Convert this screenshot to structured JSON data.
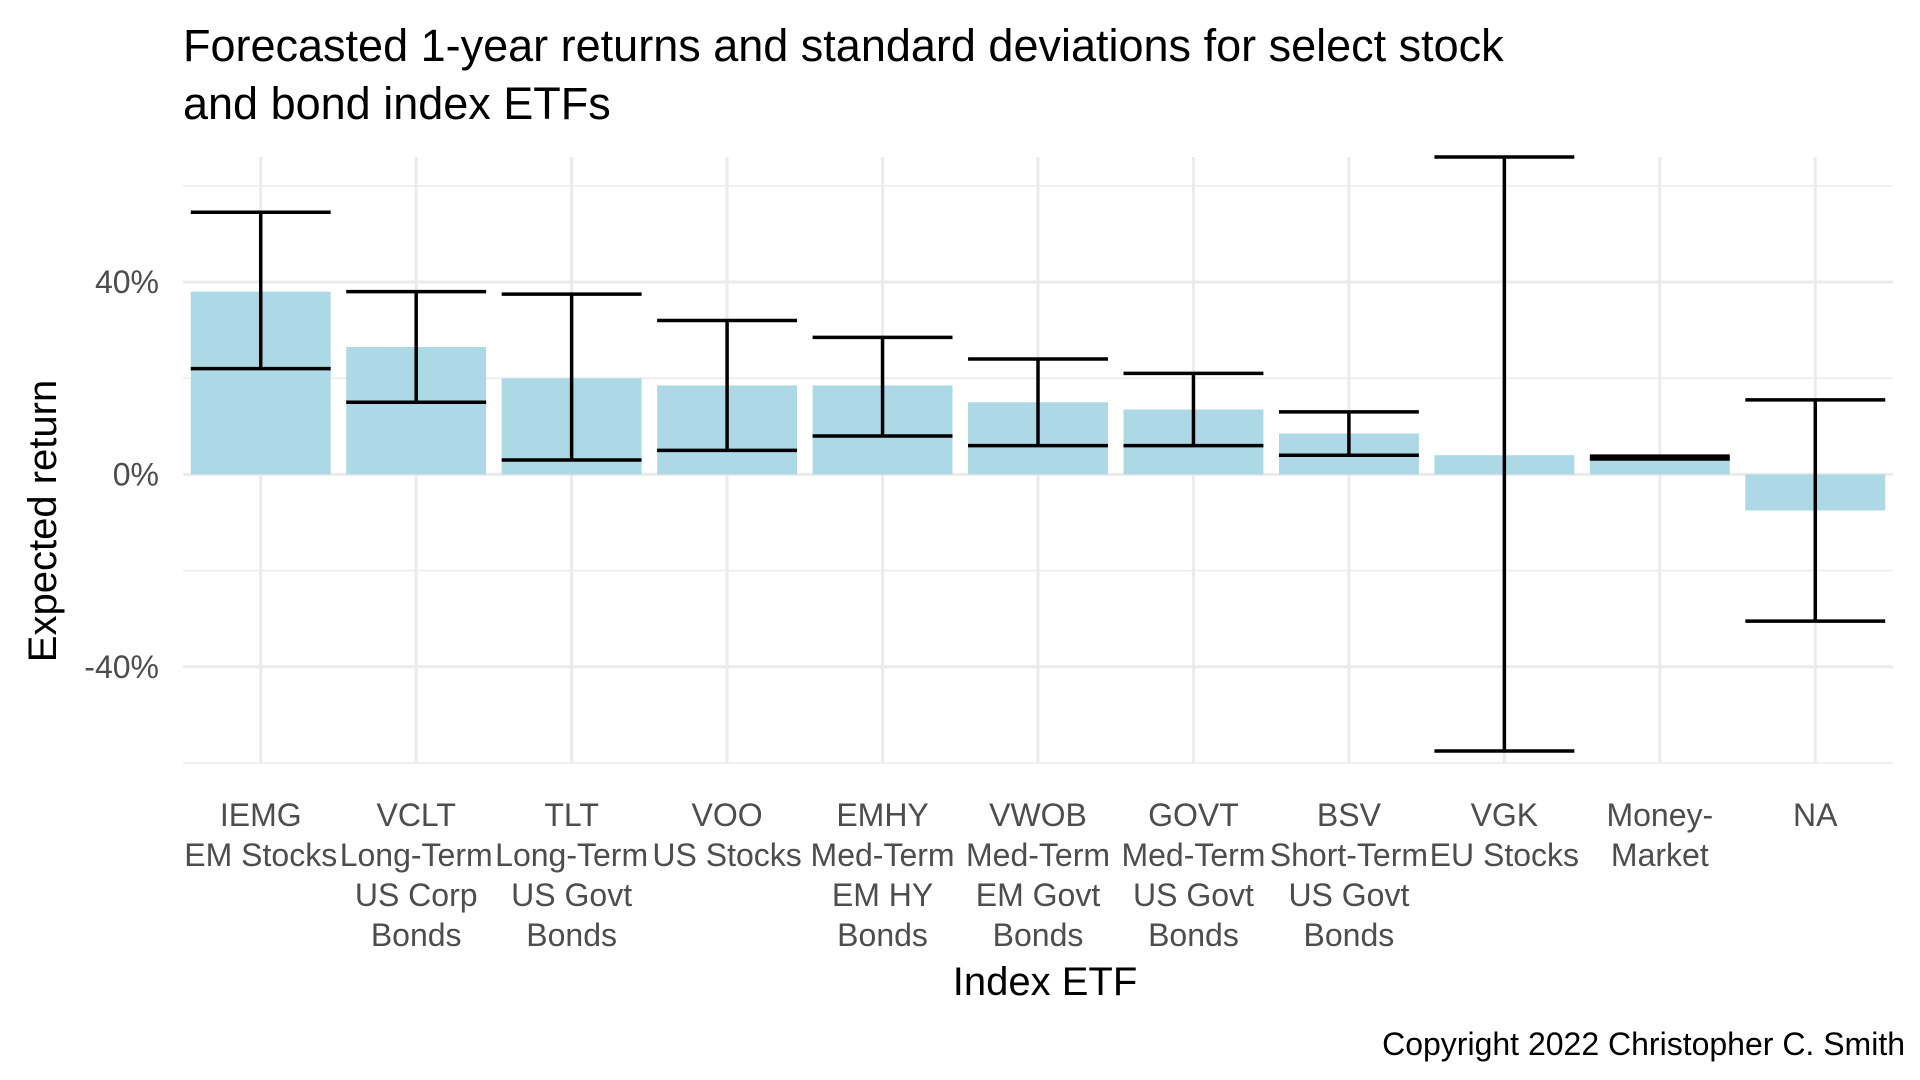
{
  "chart_data": {
    "type": "bar",
    "title_lines": [
      "Forecasted 1-year returns and standard deviations for select stock",
      "and bond index ETFs"
    ],
    "xlabel": "Index ETF",
    "ylabel": "Expected return",
    "caption": "Copyright 2022 Christopher C. Smith",
    "ylim": [
      -60,
      66
    ],
    "y_ticks": [
      -40,
      0,
      40
    ],
    "y_tick_labels": [
      "-40%",
      "0%",
      "40%"
    ],
    "grid": true,
    "bar_color": "#add8e6",
    "errorbar_color": "#000000",
    "categories": [
      {
        "label_lines": [
          "IEMG",
          "EM Stocks"
        ],
        "value": 38.0,
        "low": 22.0,
        "high": 54.5
      },
      {
        "label_lines": [
          "VCLT",
          "Long-Term",
          "US Corp",
          "Bonds"
        ],
        "value": 26.5,
        "low": 15.0,
        "high": 38.0
      },
      {
        "label_lines": [
          "TLT",
          "Long-Term",
          "US Govt",
          "Bonds"
        ],
        "value": 20.0,
        "low": 3.0,
        "high": 37.5
      },
      {
        "label_lines": [
          "VOO",
          "US Stocks"
        ],
        "value": 18.5,
        "low": 5.0,
        "high": 32.0
      },
      {
        "label_lines": [
          "EMHY",
          "Med-Term",
          "EM HY",
          "Bonds"
        ],
        "value": 18.5,
        "low": 8.0,
        "high": 28.5
      },
      {
        "label_lines": [
          "VWOB",
          "Med-Term",
          "EM Govt",
          "Bonds"
        ],
        "value": 15.0,
        "low": 6.0,
        "high": 24.0
      },
      {
        "label_lines": [
          "GOVT",
          "Med-Term",
          "US Govt",
          "Bonds"
        ],
        "value": 13.5,
        "low": 6.0,
        "high": 21.0
      },
      {
        "label_lines": [
          "BSV",
          "Short-Term",
          "US Govt",
          "Bonds"
        ],
        "value": 8.5,
        "low": 4.0,
        "high": 13.0
      },
      {
        "label_lines": [
          "VGK",
          "EU Stocks"
        ],
        "value": 4.0,
        "low": -57.5,
        "high": 66.0
      },
      {
        "label_lines": [
          "Money-",
          "Market"
        ],
        "value": 3.5,
        "low": 3.2,
        "high": 3.8
      },
      {
        "label_lines": [
          "NA"
        ],
        "value": -7.5,
        "low": -30.5,
        "high": 15.5
      }
    ]
  }
}
